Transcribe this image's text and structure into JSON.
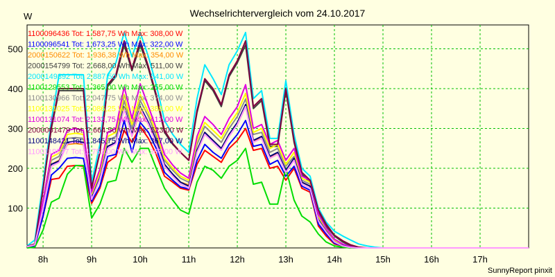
{
  "chart_data": {
    "type": "line",
    "title": "Wechselrichtervergleich vom 24.10.2017",
    "ylabel": "W",
    "xlabel": "",
    "credit": "SunnyReport pinxit",
    "xlim": [
      7.67,
      18.0
    ],
    "ylim": [
      0,
      560
    ],
    "grid": true,
    "legend_position": "top-left",
    "x_ticks": [
      {
        "value": 8,
        "label": "8h"
      },
      {
        "value": 9,
        "label": "9h"
      },
      {
        "value": 10,
        "label": "10h"
      },
      {
        "value": 11,
        "label": "11h"
      },
      {
        "value": 12,
        "label": "12h"
      },
      {
        "value": 13,
        "label": "13h"
      },
      {
        "value": 14,
        "label": "14h"
      },
      {
        "value": 15,
        "label": "15h"
      },
      {
        "value": 16,
        "label": "16h"
      },
      {
        "value": 17,
        "label": "17h"
      }
    ],
    "y_ticks": [
      100,
      200,
      300,
      400,
      500
    ],
    "x": [
      7.67,
      7.83,
      8.0,
      8.17,
      8.33,
      8.5,
      8.67,
      8.83,
      9.0,
      9.17,
      9.33,
      9.5,
      9.67,
      9.83,
      10.0,
      10.17,
      10.33,
      10.5,
      10.67,
      10.83,
      11.0,
      11.17,
      11.33,
      11.5,
      11.67,
      11.83,
      12.0,
      12.17,
      12.33,
      12.5,
      12.67,
      12.83,
      13.0,
      13.17,
      13.33,
      13.5,
      13.67,
      13.83,
      14.0,
      14.17,
      14.33,
      14.5,
      14.67,
      14.83,
      15.0,
      15.17,
      15.33,
      15.5,
      15.67,
      15.83,
      16.0,
      16.17,
      16.33,
      16.5,
      16.67,
      16.83,
      17.0,
      17.17,
      17.33,
      17.5,
      17.67,
      17.83,
      18.0
    ],
    "series": [
      {
        "name": "1100096436 Tot: 1.587,75 Wh Max: 308,00 W",
        "color": "#ff0000",
        "values": [
          2,
          5,
          80,
          172,
          175,
          205,
          207,
          205,
          112,
          150,
          215,
          230,
          295,
          265,
          305,
          275,
          235,
          180,
          165,
          150,
          145,
          210,
          245,
          230,
          215,
          250,
          270,
          300,
          245,
          250,
          200,
          205,
          170,
          200,
          150,
          140,
          55,
          30,
          10,
          5,
          0,
          0,
          0,
          0,
          0,
          0,
          0,
          0,
          0,
          0,
          0,
          0,
          0,
          0,
          0,
          0,
          0,
          0,
          0,
          0,
          0,
          0,
          0
        ]
      },
      {
        "name": "1100096541 Tot: 1.673,25 Wh Max: 322,00 W",
        "color": "#0000ff",
        "values": [
          2,
          5,
          80,
          183,
          200,
          225,
          227,
          225,
          117,
          155,
          230,
          235,
          320,
          240,
          315,
          290,
          250,
          190,
          170,
          153,
          148,
          220,
          260,
          240,
          225,
          260,
          285,
          320,
          255,
          260,
          210,
          220,
          180,
          205,
          155,
          145,
          60,
          35,
          12,
          5,
          0,
          0,
          0,
          0,
          0,
          0,
          0,
          0,
          0,
          0,
          0,
          0,
          0,
          0,
          0,
          0,
          0,
          0,
          0,
          0,
          0,
          0,
          0
        ]
      },
      {
        "name": "2000150622 Tot: 1.936,38 Wh Max: 354,00 W",
        "color": "#ff8c00",
        "values": [
          3,
          8,
          100,
          210,
          220,
          260,
          262,
          260,
          125,
          175,
          255,
          265,
          350,
          280,
          345,
          310,
          265,
          205,
          185,
          165,
          158,
          245,
          290,
          270,
          250,
          285,
          310,
          355,
          270,
          275,
          225,
          240,
          195,
          220,
          165,
          155,
          70,
          40,
          15,
          6,
          0,
          0,
          0,
          0,
          0,
          0,
          0,
          0,
          0,
          0,
          0,
          0,
          0,
          0,
          0,
          0,
          0,
          0,
          0,
          0,
          0,
          0,
          0
        ]
      },
      {
        "name": "2000154799 Tot: 2.668,00 Wh Max: 511,00 W",
        "color": "#404040",
        "values": [
          4,
          10,
          150,
          300,
          395,
          395,
          395,
          395,
          155,
          240,
          405,
          430,
          510,
          445,
          510,
          450,
          380,
          290,
          260,
          240,
          220,
          340,
          420,
          395,
          355,
          430,
          465,
          510,
          350,
          370,
          255,
          255,
          395,
          265,
          185,
          165,
          90,
          55,
          30,
          15,
          5,
          0,
          0,
          0,
          0,
          0,
          0,
          0,
          0,
          0,
          0,
          0,
          0,
          0,
          0,
          0,
          0,
          0,
          0,
          0,
          0,
          0,
          0
        ]
      },
      {
        "name": "2000149892 Tot: 2.887,50 Wh Max: 541,00 W",
        "color": "#00e8ff",
        "values": [
          5,
          20,
          165,
          320,
          435,
          435,
          435,
          435,
          165,
          260,
          435,
          465,
          541,
          480,
          541,
          480,
          410,
          320,
          285,
          260,
          240,
          375,
          460,
          425,
          385,
          460,
          495,
          541,
          375,
          395,
          275,
          275,
          420,
          285,
          200,
          180,
          100,
          65,
          42,
          30,
          20,
          10,
          5,
          2,
          0,
          0,
          0,
          0,
          0,
          0,
          0,
          0,
          0,
          0,
          0,
          0,
          0,
          0,
          0,
          0,
          0,
          0,
          0
        ]
      },
      {
        "name": "1100129553 Tot: 1.365,00 Wh Max: 255,00 W",
        "color": "#00dd00",
        "values": [
          0,
          2,
          45,
          115,
          125,
          185,
          207,
          207,
          75,
          110,
          165,
          170,
          250,
          215,
          250,
          250,
          200,
          150,
          120,
          95,
          85,
          165,
          205,
          195,
          175,
          205,
          220,
          250,
          160,
          165,
          110,
          110,
          200,
          120,
          80,
          65,
          35,
          15,
          5,
          2,
          0,
          0,
          0,
          0,
          0,
          0,
          0,
          0,
          0,
          0,
          0,
          0,
          0,
          0,
          0,
          0,
          0,
          0,
          0,
          0,
          0,
          0,
          0
        ]
      },
      {
        "name": "1100130966 Tot: 2.047,75 Wh Max: 374,00 W",
        "color": "#8c8c8c",
        "values": [
          3,
          8,
          110,
          220,
          230,
          275,
          277,
          275,
          130,
          185,
          270,
          280,
          370,
          300,
          370,
          330,
          280,
          220,
          195,
          175,
          165,
          260,
          305,
          285,
          265,
          300,
          330,
          374,
          285,
          290,
          240,
          250,
          205,
          230,
          170,
          160,
          75,
          45,
          18,
          8,
          2,
          0,
          0,
          0,
          0,
          0,
          0,
          0,
          0,
          0,
          0,
          0,
          0,
          0,
          0,
          0,
          0,
          0,
          0,
          0,
          0,
          0,
          0
        ]
      },
      {
        "name": "1100131025 Tot: 2.086,25 Wh Max: 388,00 W",
        "color": "#ffff00",
        "values": [
          3,
          8,
          115,
          228,
          238,
          285,
          288,
          285,
          135,
          190,
          280,
          290,
          385,
          310,
          385,
          340,
          290,
          225,
          200,
          180,
          170,
          270,
          315,
          295,
          275,
          310,
          340,
          388,
          290,
          300,
          250,
          260,
          210,
          240,
          175,
          165,
          80,
          48,
          20,
          8,
          2,
          0,
          0,
          0,
          0,
          0,
          0,
          0,
          0,
          0,
          0,
          0,
          0,
          0,
          0,
          0,
          0,
          0,
          0,
          0,
          0,
          0,
          0
        ]
      },
      {
        "name": "1100131074 Tot: 2.132,75 Wh Max: 412,00 W",
        "color": "#e000e0",
        "values": [
          3,
          9,
          120,
          235,
          245,
          295,
          300,
          295,
          140,
          198,
          290,
          300,
          405,
          325,
          412,
          355,
          300,
          235,
          208,
          188,
          175,
          280,
          330,
          310,
          285,
          325,
          355,
          410,
          300,
          310,
          260,
          270,
          220,
          250,
          180,
          170,
          85,
          50,
          22,
          10,
          3,
          0,
          0,
          0,
          0,
          0,
          0,
          0,
          0,
          0,
          0,
          0,
          0,
          0,
          0,
          0,
          0,
          0,
          0,
          0,
          0,
          0,
          0
        ]
      },
      {
        "name": "2000001479 Tot: 2.664,50 Wh Max: 523,00 W",
        "color": "#800040",
        "values": [
          4,
          10,
          150,
          305,
          400,
          400,
          400,
          400,
          150,
          240,
          410,
          435,
          520,
          450,
          520,
          455,
          385,
          295,
          262,
          240,
          220,
          345,
          425,
          400,
          360,
          435,
          470,
          520,
          355,
          375,
          260,
          260,
          400,
          270,
          190,
          170,
          95,
          60,
          32,
          18,
          8,
          2,
          0,
          0,
          0,
          0,
          0,
          0,
          0,
          0,
          0,
          0,
          0,
          0,
          0,
          0,
          0,
          0,
          0,
          0,
          0,
          0,
          0
        ]
      },
      {
        "name": "1100148421 Tot: 1.845,75 Wh Max: 367,00 W",
        "color": "#000080",
        "values": [
          3,
          8,
          100,
          210,
          218,
          265,
          268,
          265,
          125,
          175,
          255,
          265,
          355,
          285,
          355,
          315,
          270,
          210,
          185,
          165,
          155,
          245,
          290,
          270,
          250,
          285,
          315,
          360,
          270,
          280,
          230,
          240,
          195,
          225,
          165,
          155,
          70,
          42,
          15,
          6,
          1,
          0,
          0,
          0,
          0,
          0,
          0,
          0,
          0,
          0,
          0,
          0,
          0,
          0,
          0,
          0,
          0,
          0,
          0,
          0,
          0,
          0,
          0
        ]
      },
      {
        "name": "1100119577 Tot: 1.750,00 Wh Max: 367,00 W",
        "color": "#ff99ff",
        "values": [
          3,
          8,
          100,
          205,
          215,
          262,
          266,
          262,
          122,
          172,
          250,
          262,
          350,
          280,
          350,
          310,
          262,
          205,
          180,
          160,
          150,
          240,
          285,
          265,
          245,
          280,
          310,
          355,
          265,
          275,
          225,
          235,
          190,
          220,
          160,
          150,
          68,
          40,
          15,
          5,
          1,
          0,
          0,
          0,
          0,
          0,
          0,
          0,
          0,
          0,
          0,
          0,
          0,
          0,
          0,
          0,
          0,
          0,
          0,
          0,
          0,
          0,
          0
        ]
      }
    ]
  }
}
